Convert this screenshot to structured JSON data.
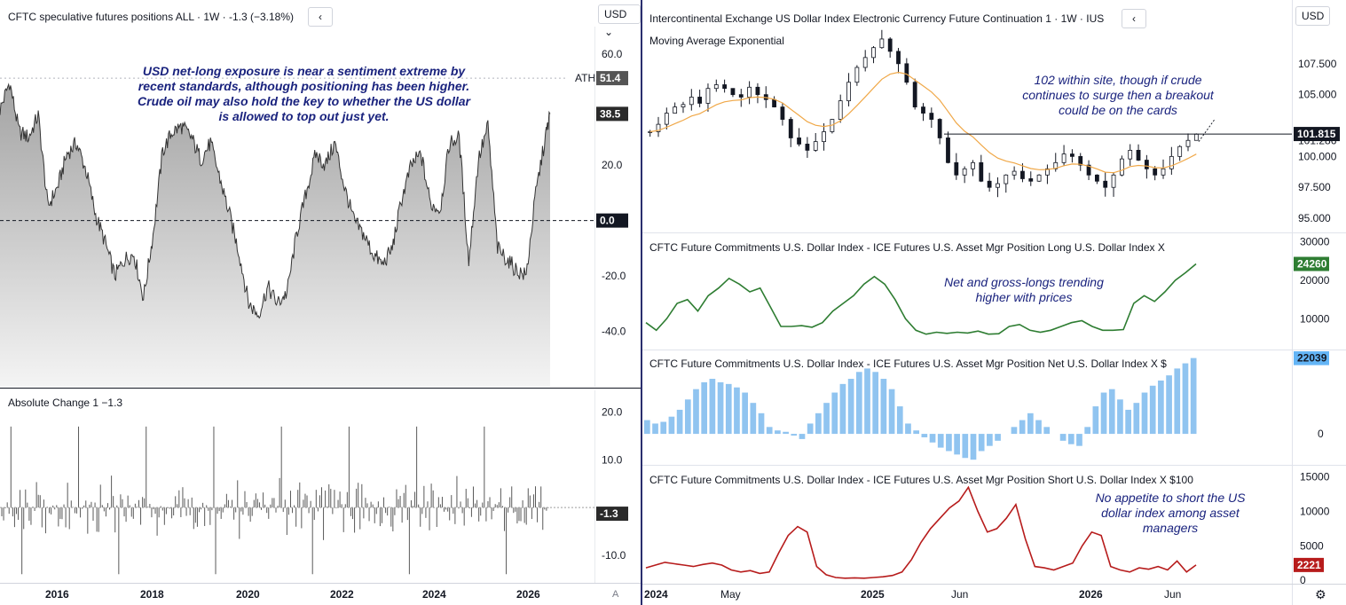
{
  "left": {
    "title": "CFTC speculative futures positions ALL · 1W · -1.3 (−3.18%)",
    "collapse_glyph": "‹",
    "currency": "USD",
    "currency_glyph": "⌄",
    "ath_label": "ATH",
    "ath_value": "51.4",
    "last_value": "38.5",
    "zero_value": "0.0",
    "y_ticks": [
      "60.0",
      "20.0",
      "-20.0",
      "-40.0"
    ],
    "annotation": "USD net-long exposure is near a sentiment extreme by recent standards, although positioning has been higher. Crude oil may also hold the key to whether the US dollar is allowed to top out just yet.",
    "change_title": "Absolute Change 1 −1.3",
    "change_ticks": [
      "20.0",
      "10.0",
      "-10.0"
    ],
    "change_last": "-1.3",
    "x_ticks": [
      "2016",
      "2018",
      "2020",
      "2022",
      "2024",
      "2026"
    ],
    "auto_label": "A"
  },
  "right": {
    "title": "Intercontinental Exchange US Dollar Index Electronic Currency Future Continuation 1 · 1W · IUS",
    "collapse_glyph": "‹",
    "currency": "USD",
    "ema_label": "Moving Average Exponential",
    "price_ticks": [
      "107.500",
      "105.000",
      "101.286",
      "100.000",
      "97.500",
      "95.000"
    ],
    "price_last": "101.815",
    "price_note": "102 within site, though if crude continues to surge then a breakout could be on the cards",
    "long_title": "CFTC Future Commitments U.S. Dollar Index - ICE Futures U.S. Asset Mgr Position Long U.S. Dollar Index X",
    "long_ticks": [
      "30000",
      "20000",
      "10000"
    ],
    "long_last": "24260",
    "long_note": "Net and gross-longs trending higher with prices",
    "net_title": "CFTC Future Commitments U.S. Dollar Index - ICE Futures U.S. Asset Mgr Position Net U.S. Dollar Index X $",
    "net_ticks": [
      "0"
    ],
    "net_last": "22039",
    "short_title": "CFTC Future Commitments U.S. Dollar Index - ICE Futures U.S. Asset Mgr Position Short U.S. Dollar Index X $100",
    "short_ticks": [
      "15000",
      "10000",
      "5000",
      "0"
    ],
    "short_last": "2221",
    "short_note": "No appetite to short the US dollar index among asset managers",
    "x_ticks": [
      "2024",
      "May",
      "2025",
      "Jun",
      "2026",
      "Jun"
    ],
    "settings_glyph": "⚙"
  },
  "chart_data": [
    {
      "type": "area",
      "name": "CFTC speculative futures positions",
      "x_range": [
        2015,
        2026.5
      ],
      "ylim": [
        -60,
        70
      ],
      "x": [
        2015.0,
        2015.2,
        2015.4,
        2015.6,
        2015.8,
        2016.0,
        2016.2,
        2016.4,
        2016.6,
        2016.8,
        2017.0,
        2017.2,
        2017.4,
        2017.6,
        2017.8,
        2018.0,
        2018.2,
        2018.4,
        2018.6,
        2018.8,
        2019.0,
        2019.2,
        2019.4,
        2019.6,
        2019.8,
        2020.0,
        2020.2,
        2020.4,
        2020.6,
        2020.8,
        2021.0,
        2021.2,
        2021.4,
        2021.6,
        2021.8,
        2022.0,
        2022.2,
        2022.4,
        2022.6,
        2022.8,
        2023.0,
        2023.2,
        2023.4,
        2023.6,
        2023.8,
        2024.0,
        2024.2,
        2024.4,
        2024.6,
        2024.8,
        2025.0,
        2025.2,
        2025.4,
        2025.6,
        2025.8,
        2026.0,
        2026.2,
        2026.4,
        2026.5
      ],
      "values": [
        40,
        50,
        32,
        30,
        38,
        5,
        12,
        24,
        28,
        18,
        2,
        -8,
        -20,
        -14,
        -12,
        -28,
        -5,
        25,
        32,
        34,
        30,
        22,
        28,
        15,
        2,
        -12,
        -30,
        -34,
        -24,
        -30,
        -26,
        -5,
        10,
        24,
        20,
        28,
        12,
        0,
        -5,
        -12,
        -16,
        -10,
        8,
        20,
        24,
        6,
        4,
        28,
        30,
        -15,
        22,
        34,
        -10,
        -14,
        -18,
        -20,
        10,
        30,
        38.5
      ]
    },
    {
      "type": "bar",
      "name": "Absolute Change 1",
      "ylim": [
        -16,
        22
      ],
      "last": -1.3
    },
    {
      "type": "line",
      "name": "Intercontinental Exchange US Dollar Index Electronic Currency Future Continuation 1",
      "ylim": [
        94,
        110.5
      ],
      "values": [
        102.0,
        102.6,
        103.5,
        104.0,
        104.2,
        104.8,
        104.3,
        105.5,
        105.8,
        105.5,
        105.0,
        104.8,
        105.6,
        105.0,
        104.6,
        104.0,
        103.0,
        101.5,
        101.0,
        100.5,
        101.2,
        102.0,
        103.0,
        104.5,
        106.0,
        107.2,
        108.0,
        108.8,
        109.5,
        108.5,
        107.5,
        106.0,
        104.0,
        103.5,
        103.0,
        101.5,
        99.5,
        98.5,
        99.0,
        99.5,
        98.0,
        97.5,
        97.8,
        98.5,
        98.8,
        98.2,
        98.0,
        98.5,
        99.0,
        99.5,
        100.2,
        100.0,
        99.3,
        98.5,
        98.0,
        97.5,
        98.5,
        99.8,
        100.5,
        99.7,
        99.0,
        98.5,
        99.0,
        100.0,
        100.8,
        101.3,
        101.8
      ]
    },
    {
      "type": "line",
      "name": "Asset Mgr Position Long",
      "ylim": [
        2000,
        32000
      ],
      "values": [
        9000,
        7000,
        10000,
        14000,
        15000,
        12000,
        16000,
        18000,
        20500,
        19000,
        17000,
        18000,
        13000,
        8000,
        8000,
        8200,
        7800,
        9000,
        12000,
        14000,
        16000,
        19000,
        21000,
        19000,
        15000,
        10000,
        7000,
        6000,
        6500,
        6200,
        6500,
        6300,
        6800,
        6000,
        6100,
        8000,
        8500,
        7000,
        6500,
        7000,
        8000,
        9000,
        9500,
        8000,
        7000,
        7000,
        7200,
        14000,
        16000,
        14500,
        17000,
        20000,
        22000,
        24260
      ]
    },
    {
      "type": "bar",
      "name": "Asset Mgr Position Net",
      "ylim": [
        -9000,
        24000
      ],
      "values": [
        4000,
        3000,
        3500,
        5000,
        7000,
        10000,
        13000,
        15000,
        16000,
        15000,
        14500,
        13500,
        12000,
        9000,
        6000,
        2000,
        1000,
        600,
        -500,
        -1500,
        3000,
        6000,
        9000,
        12000,
        14500,
        16000,
        18000,
        19000,
        18000,
        16000,
        13000,
        8000,
        3000,
        1000,
        -1000,
        -2500,
        -4000,
        -5000,
        -6000,
        -7000,
        -7500,
        -5000,
        -3500,
        -2000,
        0,
        2000,
        4000,
        6000,
        4000,
        2000,
        0,
        -2000,
        -3000,
        -3500,
        2000,
        8000,
        12000,
        13000,
        10000,
        7000,
        9000,
        12000,
        14000,
        15500,
        17000,
        19000,
        20500,
        22039
      ]
    },
    {
      "type": "line",
      "name": "Asset Mgr Position Short",
      "ylim": [
        -500,
        16500
      ],
      "values": [
        1800,
        2200,
        2600,
        2400,
        2200,
        2000,
        2300,
        2500,
        2200,
        1500,
        1200,
        1400,
        1000,
        1200,
        4000,
        6500,
        7800,
        7000,
        2000,
        800,
        400,
        300,
        350,
        300,
        400,
        500,
        700,
        1200,
        3000,
        5500,
        7500,
        9000,
        10500,
        11500,
        13500,
        10000,
        7000,
        7500,
        9000,
        11000,
        6000,
        2000,
        1800,
        1500,
        2000,
        2500,
        5000,
        7000,
        6500,
        2000,
        1500,
        1200,
        1800,
        1600,
        2000,
        1500,
        2800,
        1200,
        2221
      ]
    }
  ]
}
